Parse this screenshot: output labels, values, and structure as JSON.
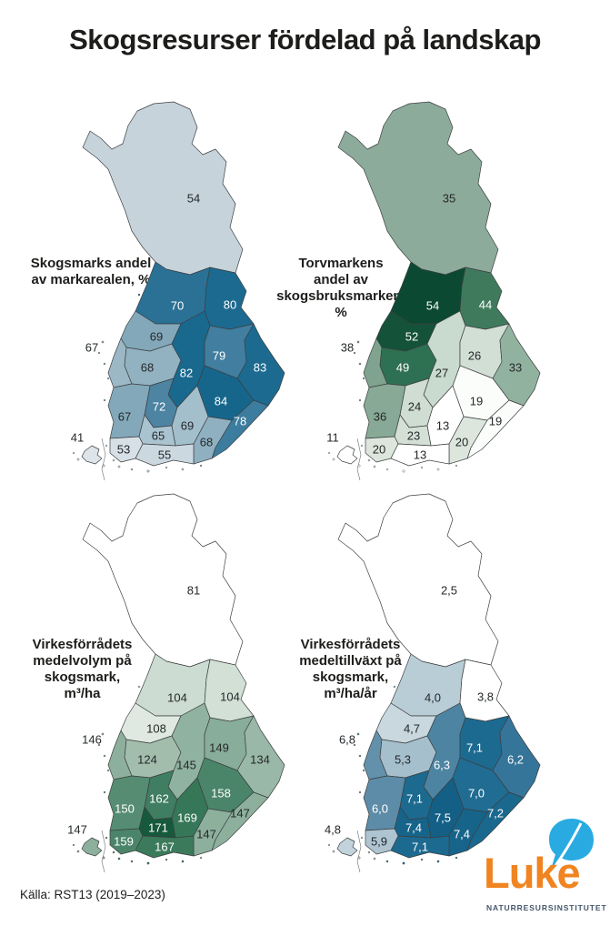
{
  "title": "Skogsresurser fördelad på landskap",
  "source": "Källa: RST13 (2019–2023)",
  "logo": {
    "name": "Luke",
    "subtitle": "NATURRESURSINSTITUTET",
    "wordmark_color": "#f08421",
    "leaf_color": "#29abe2",
    "subtitle_color": "#44576b"
  },
  "chart_data": {
    "type": "heatmap",
    "subtype": "choropleth-finland-regions-2x2-grid",
    "region_ids": [
      "lapland",
      "north-ostrobothnia",
      "kainuu",
      "central-ostrobothnia",
      "ostrobothnia",
      "south-ostrobothnia",
      "central-finland",
      "north-savo",
      "north-karelia",
      "pirkanmaa",
      "south-savo",
      "satakunta",
      "paijat-hame",
      "south-karelia",
      "kanta-hame",
      "kymenlaakso",
      "southwest-finland",
      "uusimaa",
      "aland"
    ],
    "maps": [
      {
        "id": "skogsmark-andel",
        "label": "Skogsmarks andel\nav markarealen, %",
        "unit": "%",
        "values": {
          "lapland": "54",
          "north-ostrobothnia": "70",
          "kainuu": "80",
          "central-ostrobothnia": "69",
          "ostrobothnia": "67",
          "south-ostrobothnia": "68",
          "central-finland": "82",
          "north-savo": "79",
          "north-karelia": "83",
          "pirkanmaa": "72",
          "south-savo": "84",
          "satakunta": "67",
          "paijat-hame": "69",
          "south-karelia": "78",
          "kanta-hame": "65",
          "kymenlaakso": "68",
          "southwest-finland": "53",
          "uusimaa": "55",
          "aland": "41"
        },
        "fills": {
          "lapland": "#c6d3db",
          "north-ostrobothnia": "#2b7195",
          "kainuu": "#1c6a90",
          "central-ostrobothnia": "#83a8ba",
          "ostrobothnia": "#9cb8c6",
          "south-ostrobothnia": "#92b2c2",
          "central-finland": "#19688e",
          "north-savo": "#417ea0",
          "north-karelia": "#1c6a90",
          "pirkanmaa": "#4c84a2",
          "south-savo": "#16668c",
          "satakunta": "#83a8ba",
          "paijat-hame": "#a3bfcc",
          "south-karelia": "#3c7c9e",
          "kanta-hame": "#aac3d0",
          "kymenlaakso": "#8fb0c0",
          "southwest-finland": "#d6e0e6",
          "uusimaa": "#cbd8e0",
          "aland": "#dde5ea"
        }
      },
      {
        "id": "torvmark-andel",
        "label": "Torvmarkens\nandel av\nskogsbruksmarken, %",
        "unit": "%",
        "values": {
          "lapland": "35",
          "north-ostrobothnia": "54",
          "kainuu": "44",
          "central-ostrobothnia": "52",
          "ostrobothnia": "38",
          "south-ostrobothnia": "49",
          "central-finland": "27",
          "north-savo": "26",
          "north-karelia": "33",
          "pirkanmaa": "24",
          "south-savo": "19",
          "satakunta": "36",
          "paijat-hame": "13",
          "south-karelia": "19",
          "kanta-hame": "23",
          "kymenlaakso": "20",
          "southwest-finland": "20",
          "uusimaa": "13",
          "aland": "11"
        },
        "fills": {
          "lapland": "#8cab9b",
          "north-ostrobothnia": "#0b4933",
          "kainuu": "#3f7a5d",
          "central-ostrobothnia": "#14523a",
          "ostrobothnia": "#7fa38f",
          "south-ostrobothnia": "#2e7052",
          "central-finland": "#c9dace",
          "north-savo": "#d2dfd5",
          "north-karelia": "#92b2a0",
          "pirkanmaa": "#cfddd2",
          "south-savo": "#fbfdfb",
          "satakunta": "#87a995",
          "paijat-hame": "#ffffff",
          "south-karelia": "#fbfdfb",
          "kanta-hame": "#d4e0d6",
          "kymenlaakso": "#dce6dd",
          "southwest-finland": "#dce6dd",
          "uusimaa": "#ffffff",
          "aland": "#ffffff"
        }
      },
      {
        "id": "medelvolym",
        "label": "Virkesförrådets\nmedelvolym på\nskogsmark,\nm³/ha",
        "unit": "m³/ha",
        "values": {
          "lapland": "81",
          "north-ostrobothnia": "104",
          "kainuu": "104",
          "central-ostrobothnia": "108",
          "ostrobothnia": "146",
          "south-ostrobothnia": "124",
          "central-finland": "145",
          "north-savo": "149",
          "north-karelia": "134",
          "pirkanmaa": "162",
          "south-savo": "158",
          "satakunta": "150",
          "paijat-hame": "169",
          "south-karelia": "147",
          "kanta-hame": "171",
          "kymenlaakso": "147",
          "southwest-finland": "159",
          "uusimaa": "167",
          "aland": "147"
        },
        "fills": {
          "lapland": "#ffffff",
          "north-ostrobothnia": "#ccdcd2",
          "kainuu": "#d2e0d6",
          "central-ostrobothnia": "#dfe9e2",
          "ostrobothnia": "#8db09d",
          "south-ostrobothnia": "#a3bdac",
          "central-finland": "#90b2a0",
          "north-savo": "#88ad9a",
          "north-karelia": "#9ab8a8",
          "pirkanmaa": "#3f7e60",
          "south-savo": "#4b8569",
          "satakunta": "#568d72",
          "paijat-hame": "#357757",
          "south-karelia": "#8db09d",
          "kanta-hame": "#17593c",
          "kymenlaakso": "#8db09d",
          "southwest-finland": "#4b8569",
          "uusimaa": "#3b7b5c",
          "aland": "#8db09d"
        }
      },
      {
        "id": "medeltillvaxt",
        "label": "Virkesförrådets\nmedeltillväxt på\nskogsmark,\nm³/ha/år",
        "unit": "m³/ha/år",
        "values": {
          "lapland": "2,5",
          "north-ostrobothnia": "4,0",
          "kainuu": "3,8",
          "central-ostrobothnia": "4,7",
          "ostrobothnia": "6,8",
          "south-ostrobothnia": "5,3",
          "central-finland": "6,3",
          "north-savo": "7,1",
          "north-karelia": "6,2",
          "pirkanmaa": "7,1",
          "south-savo": "7,0",
          "satakunta": "6,0",
          "paijat-hame": "7,5",
          "south-karelia": "7,2",
          "kanta-hame": "7,4",
          "kymenlaakso": "7,4",
          "southwest-finland": "5,9",
          "uusimaa": "7,1",
          "aland": "4,8"
        },
        "fills": {
          "lapland": "#ffffff",
          "north-ostrobothnia": "#b9cdd7",
          "kainuu": "#ffffff",
          "central-ostrobothnia": "#c9d8df",
          "ostrobothnia": "#6391ab",
          "south-ostrobothnia": "#a5bfcc",
          "central-finland": "#4d84a2",
          "north-savo": "#1d6a90",
          "north-karelia": "#35759a",
          "pirkanmaa": "#1d6a90",
          "south-savo": "#206c92",
          "satakunta": "#5d8ca8",
          "paijat-hame": "#145f86",
          "south-karelia": "#1a688e",
          "kanta-hame": "#17648a",
          "kymenlaakso": "#17648a",
          "southwest-finland": "#aec5d1",
          "uusimaa": "#1d6a90",
          "aland": "#c2d3db"
        }
      }
    ]
  }
}
